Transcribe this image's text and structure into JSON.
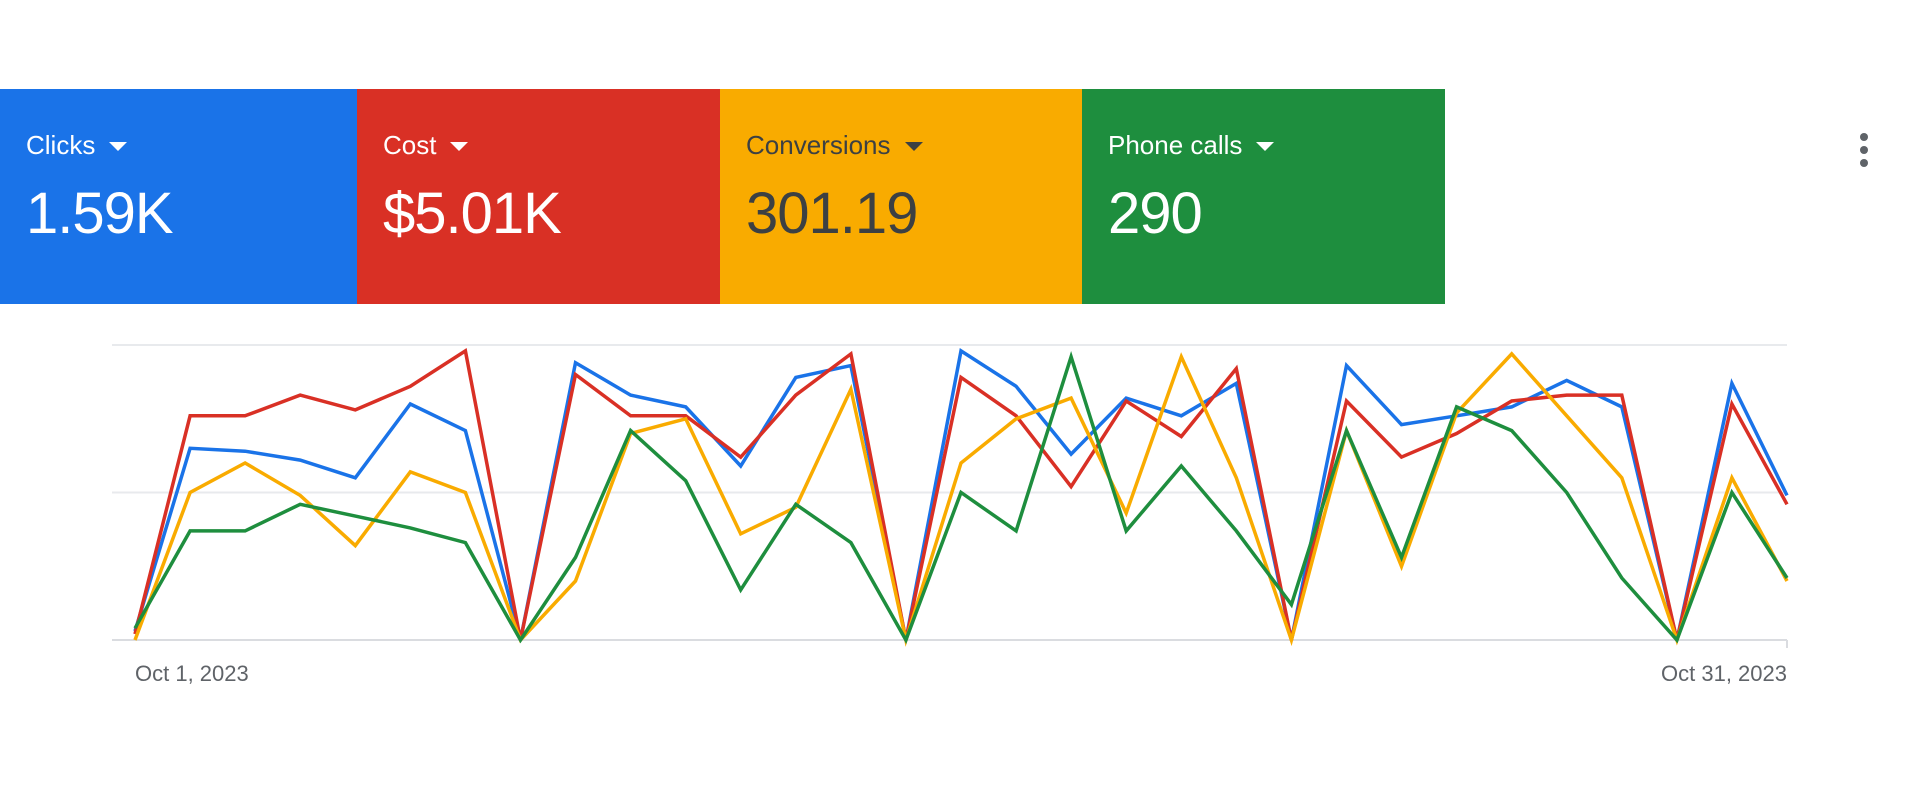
{
  "scorecards": [
    {
      "label": "Clicks",
      "value": "1.59K",
      "color": "#1a73e8",
      "text_color": "#ffffff"
    },
    {
      "label": "Cost",
      "value": "$5.01K",
      "color": "#d93025",
      "text_color": "#ffffff"
    },
    {
      "label": "Conversions",
      "value": "301.19",
      "color": "#f9ab00",
      "text_color": "#3c4043"
    },
    {
      "label": "Phone calls",
      "value": "290",
      "color": "#1e8e3e",
      "text_color": "#ffffff"
    }
  ],
  "more_menu_icon": "more-vert-icon",
  "chart_data": {
    "type": "line",
    "x_tick_labels": [
      "Oct 1, 2023",
      "Oct 31, 2023"
    ],
    "x": [
      1,
      2,
      3,
      4,
      5,
      6,
      7,
      8,
      9,
      10,
      11,
      12,
      13,
      14,
      15,
      16,
      17,
      18,
      19,
      20,
      21,
      22,
      23,
      24,
      25,
      26,
      27,
      28,
      29,
      30,
      31
    ],
    "ylim": [
      0,
      1
    ],
    "grid": true,
    "series": [
      {
        "color": "#1a73e8",
        "values": [
          0.03,
          0.65,
          0.64,
          0.61,
          0.55,
          0.8,
          0.71,
          0.0,
          0.94,
          0.83,
          0.79,
          0.59,
          0.89,
          0.93,
          0.0,
          0.98,
          0.86,
          0.63,
          0.82,
          0.76,
          0.87,
          0.0,
          0.93,
          0.73,
          0.76,
          0.79,
          0.88,
          0.79,
          0.0,
          0.87,
          0.49
        ]
      },
      {
        "color": "#d93025",
        "values": [
          0.02,
          0.76,
          0.76,
          0.83,
          0.78,
          0.86,
          0.98,
          0.0,
          0.9,
          0.76,
          0.76,
          0.62,
          0.83,
          0.97,
          0.0,
          0.89,
          0.76,
          0.52,
          0.81,
          0.69,
          0.92,
          0.0,
          0.81,
          0.62,
          0.7,
          0.81,
          0.83,
          0.83,
          0.0,
          0.8,
          0.46
        ]
      },
      {
        "color": "#f9ab00",
        "values": [
          0.0,
          0.5,
          0.6,
          0.49,
          0.32,
          0.57,
          0.5,
          0.0,
          0.2,
          0.7,
          0.75,
          0.36,
          0.45,
          0.85,
          0.0,
          0.6,
          0.75,
          0.82,
          0.43,
          0.96,
          0.55,
          0.0,
          0.71,
          0.25,
          0.77,
          0.97,
          0.76,
          0.55,
          0.0,
          0.55,
          0.2
        ]
      },
      {
        "color": "#1e8e3e",
        "values": [
          0.04,
          0.37,
          0.37,
          0.46,
          0.42,
          0.38,
          0.33,
          0.0,
          0.28,
          0.71,
          0.54,
          0.17,
          0.46,
          0.33,
          0.0,
          0.5,
          0.37,
          0.96,
          0.37,
          0.59,
          0.37,
          0.12,
          0.71,
          0.28,
          0.79,
          0.71,
          0.5,
          0.21,
          0.0,
          0.5,
          0.21
        ]
      }
    ]
  }
}
